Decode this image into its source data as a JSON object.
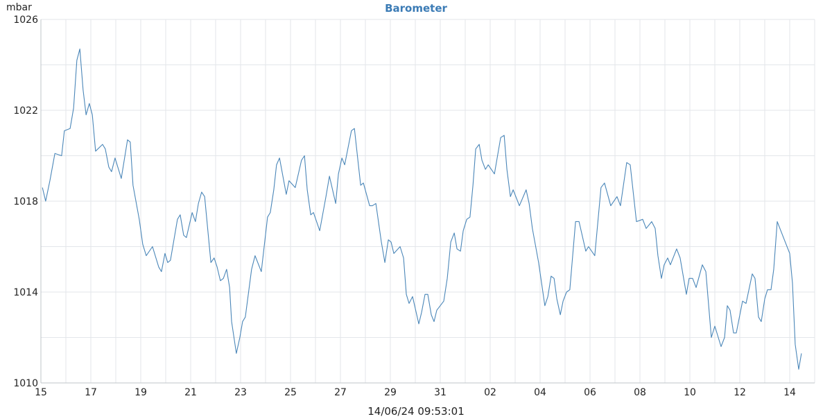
{
  "chart_data": {
    "type": "line",
    "title": "Barometer",
    "ylabel": "mbar",
    "xlabel": "14/06/24 09:53:01",
    "xlim": [
      0,
      31
    ],
    "ylim": [
      1010,
      1026
    ],
    "xticks": [
      {
        "value": 0,
        "label": "15"
      },
      {
        "value": 2,
        "label": "17"
      },
      {
        "value": 4,
        "label": "19"
      },
      {
        "value": 6,
        "label": "21"
      },
      {
        "value": 8,
        "label": "23"
      },
      {
        "value": 10,
        "label": "25"
      },
      {
        "value": 12,
        "label": "27"
      },
      {
        "value": 14,
        "label": "29"
      },
      {
        "value": 16,
        "label": "31"
      },
      {
        "value": 18,
        "label": "02"
      },
      {
        "value": 20,
        "label": "04"
      },
      {
        "value": 22,
        "label": "06"
      },
      {
        "value": 24,
        "label": "08"
      },
      {
        "value": 26,
        "label": "10"
      },
      {
        "value": 28,
        "label": "12"
      },
      {
        "value": 30,
        "label": "14"
      }
    ],
    "xminorticks": [
      1,
      3,
      5,
      7,
      9,
      11,
      13,
      15,
      17,
      19,
      21,
      23,
      25,
      27,
      29,
      31
    ],
    "yticks": [
      1010,
      1014,
      1018,
      1022,
      1026
    ],
    "yminorticks": [
      1012,
      1016,
      1020,
      1024
    ],
    "grid": true,
    "series": [
      {
        "name": "Barometer",
        "color": "#4a86b8",
        "x": [
          0.06,
          0.19,
          0.36,
          0.56,
          0.83,
          0.94,
          1.17,
          1.31,
          1.44,
          1.56,
          1.69,
          1.81,
          1.94,
          2.06,
          2.19,
          2.47,
          2.58,
          2.72,
          2.83,
          2.97,
          3.22,
          3.47,
          3.58,
          3.69,
          3.94,
          4.08,
          4.22,
          4.47,
          4.72,
          4.83,
          4.97,
          5.08,
          5.19,
          5.47,
          5.58,
          5.72,
          5.83,
          6.06,
          6.19,
          6.31,
          6.44,
          6.56,
          6.81,
          6.94,
          7.06,
          7.19,
          7.31,
          7.44,
          7.56,
          7.64,
          7.83,
          7.97,
          8.08,
          8.19,
          8.44,
          8.58,
          8.83,
          9.08,
          9.19,
          9.33,
          9.44,
          9.56,
          9.83,
          9.94,
          10.19,
          10.44,
          10.56,
          10.67,
          10.81,
          10.92,
          11.17,
          11.42,
          11.56,
          11.81,
          11.92,
          12.06,
          12.17,
          12.44,
          12.56,
          12.81,
          12.92,
          13.17,
          13.28,
          13.42,
          13.64,
          13.78,
          13.92,
          14.03,
          14.14,
          14.39,
          14.53,
          14.64,
          14.75,
          14.89,
          15.14,
          15.25,
          15.39,
          15.5,
          15.64,
          15.75,
          15.86,
          16.14,
          16.28,
          16.42,
          16.56,
          16.67,
          16.81,
          16.92,
          17.06,
          17.19,
          17.31,
          17.42,
          17.56,
          17.67,
          17.81,
          17.92,
          18.17,
          18.42,
          18.56,
          18.67,
          18.81,
          18.92,
          19.17,
          19.44,
          19.56,
          19.69,
          19.94,
          20.19,
          20.31,
          20.44,
          20.56,
          20.67,
          20.81,
          20.92,
          21.06,
          21.19,
          21.42,
          21.56,
          21.83,
          21.94,
          22.19,
          22.44,
          22.58,
          22.83,
          23.08,
          23.22,
          23.47,
          23.61,
          23.86,
          24.11,
          24.25,
          24.47,
          24.61,
          24.72,
          24.86,
          24.97,
          25.11,
          25.22,
          25.47,
          25.61,
          25.86,
          25.97,
          26.11,
          26.25,
          26.5,
          26.64,
          26.86,
          27.0,
          27.25,
          27.39,
          27.5,
          27.61,
          27.75,
          27.86,
          28.11,
          28.25,
          28.5,
          28.61,
          28.75,
          28.86,
          29.0,
          29.11,
          29.25,
          29.36,
          29.5,
          29.75,
          30.0,
          30.11,
          30.22,
          30.36,
          30.47
        ],
        "values": [
          1018.6,
          1018.0,
          1018.9,
          1020.1,
          1020.0,
          1021.1,
          1021.2,
          1022.1,
          1024.2,
          1024.7,
          1022.9,
          1021.8,
          1022.3,
          1021.8,
          1020.2,
          1020.5,
          1020.3,
          1019.5,
          1019.3,
          1019.9,
          1019.0,
          1020.7,
          1020.6,
          1018.7,
          1017.2,
          1016.1,
          1015.6,
          1016.0,
          1015.1,
          1014.9,
          1015.7,
          1015.3,
          1015.4,
          1017.2,
          1017.4,
          1016.5,
          1016.4,
          1017.5,
          1017.1,
          1017.9,
          1018.4,
          1018.2,
          1015.3,
          1015.5,
          1015.1,
          1014.5,
          1014.6,
          1015.0,
          1014.2,
          1012.7,
          1011.3,
          1012.0,
          1012.7,
          1012.9,
          1015.0,
          1015.6,
          1014.9,
          1017.3,
          1017.5,
          1018.5,
          1019.6,
          1019.9,
          1018.3,
          1018.9,
          1018.6,
          1019.8,
          1020.0,
          1018.5,
          1017.4,
          1017.5,
          1016.7,
          1018.2,
          1019.1,
          1017.9,
          1019.2,
          1019.9,
          1019.6,
          1021.1,
          1021.2,
          1018.7,
          1018.8,
          1017.8,
          1017.8,
          1017.9,
          1016.2,
          1015.3,
          1016.3,
          1016.2,
          1015.7,
          1016.0,
          1015.5,
          1013.9,
          1013.5,
          1013.8,
          1012.6,
          1013.1,
          1013.9,
          1013.9,
          1013.0,
          1012.7,
          1013.2,
          1013.6,
          1014.6,
          1016.2,
          1016.6,
          1015.9,
          1015.8,
          1016.7,
          1017.2,
          1017.3,
          1018.7,
          1020.3,
          1020.5,
          1019.8,
          1019.4,
          1019.6,
          1019.2,
          1020.8,
          1020.9,
          1019.4,
          1018.2,
          1018.5,
          1017.8,
          1018.5,
          1017.9,
          1016.8,
          1015.3,
          1013.4,
          1013.8,
          1014.7,
          1014.6,
          1013.7,
          1013.0,
          1013.6,
          1014.0,
          1014.1,
          1017.1,
          1017.1,
          1015.8,
          1016.0,
          1015.6,
          1018.6,
          1018.8,
          1017.8,
          1018.2,
          1017.8,
          1019.7,
          1019.6,
          1017.1,
          1017.2,
          1016.8,
          1017.1,
          1016.8,
          1015.6,
          1014.6,
          1015.2,
          1015.5,
          1015.2,
          1015.9,
          1015.5,
          1013.9,
          1014.6,
          1014.6,
          1014.2,
          1015.2,
          1014.9,
          1012.0,
          1012.5,
          1011.6,
          1012.0,
          1013.4,
          1013.2,
          1012.2,
          1012.2,
          1013.6,
          1013.5,
          1014.8,
          1014.6,
          1012.9,
          1012.7,
          1013.7,
          1014.1,
          1014.1,
          1015.0,
          1017.1,
          1016.4,
          1015.7,
          1014.4,
          1011.7,
          1010.6,
          1011.3
        ]
      }
    ]
  }
}
